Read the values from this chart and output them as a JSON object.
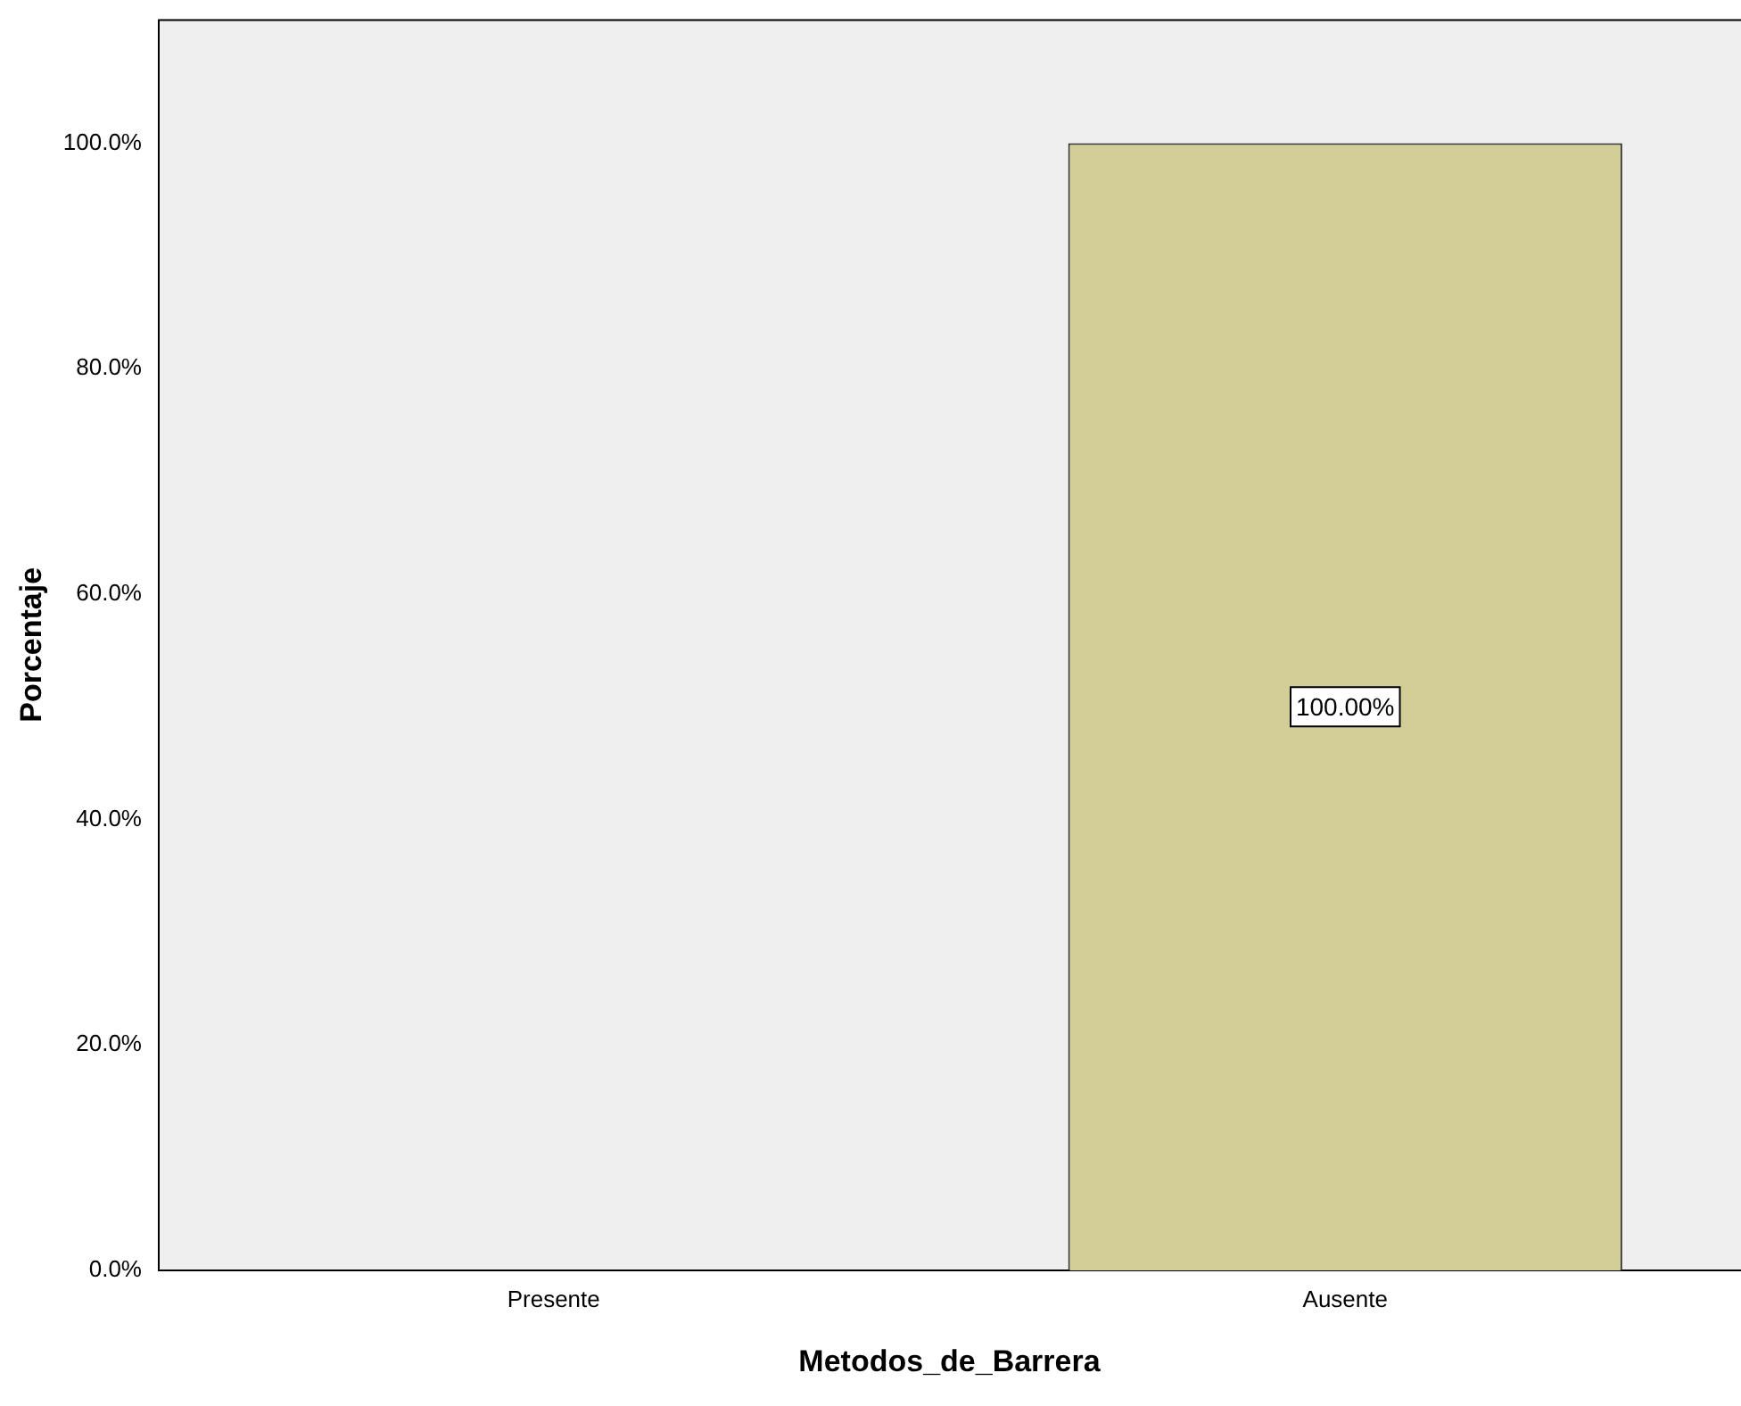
{
  "chart_data": {
    "type": "bar",
    "xlabel": "Metodos_de_Barrera",
    "ylabel": "Porcentaje",
    "categories": [
      "Presente",
      "Ausente"
    ],
    "values": [
      0,
      100
    ],
    "color": "#d3cd97",
    "value_labels": [
      null,
      "100.00%"
    ],
    "ylim": [
      0,
      111
    ],
    "yticks": [
      {
        "value": 0,
        "label": "0.0%"
      },
      {
        "value": 20,
        "label": "20.0%"
      },
      {
        "value": 40,
        "label": "40.0%"
      },
      {
        "value": 60,
        "label": "60.0%"
      },
      {
        "value": 80,
        "label": "80.0%"
      },
      {
        "value": 100,
        "label": "100.0%"
      }
    ],
    "grid": false,
    "legend": false
  }
}
